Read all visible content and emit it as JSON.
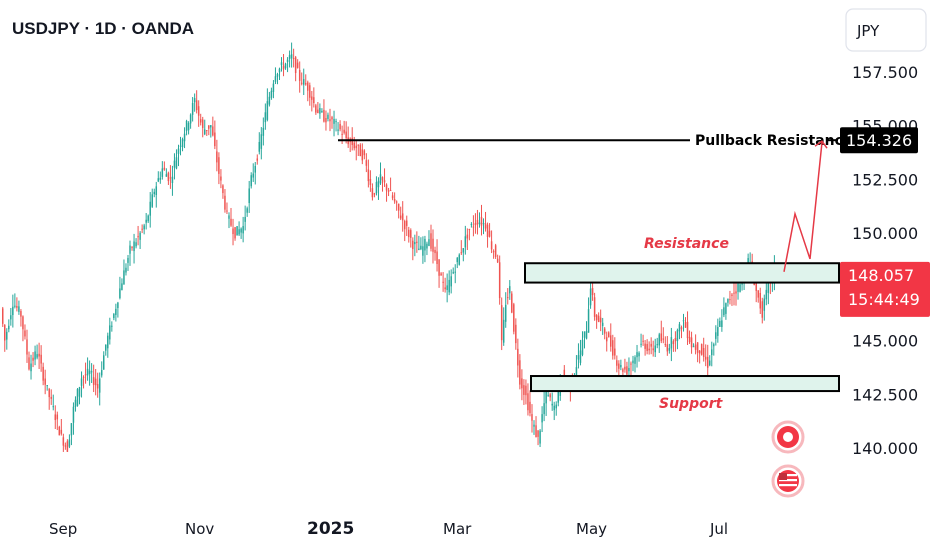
{
  "header": {
    "symbol_title": "USDJPY · 1D · OANDA"
  },
  "currency_button": {
    "label": "JPY"
  },
  "price_tags": {
    "current_price": "148.057",
    "countdown": "15:44:49",
    "pullback_price": "154.326"
  },
  "chart_data": {
    "type": "candlestick",
    "title": "USDJPY · 1D · OANDA",
    "ylim": [
      139.0,
      159.5
    ],
    "y_ticks": [
      {
        "value": 157.5,
        "label": "157.500"
      },
      {
        "value": 155.0,
        "label": "155.000"
      },
      {
        "value": 152.5,
        "label": "152.500"
      },
      {
        "value": 150.0,
        "label": "150.000"
      },
      {
        "value": 145.0,
        "label": "145.000"
      },
      {
        "value": 142.5,
        "label": "142.500"
      },
      {
        "value": 140.0,
        "label": "140.000"
      }
    ],
    "x_ticks": [
      {
        "label": "Sep",
        "bold": false
      },
      {
        "label": "Nov",
        "bold": false
      },
      {
        "label": "2025",
        "bold": true
      },
      {
        "label": "Mar",
        "bold": false
      },
      {
        "label": "May",
        "bold": false
      },
      {
        "label": "Jul",
        "bold": false
      }
    ],
    "price_path": [
      [
        0,
        146.5
      ],
      [
        2,
        145.0
      ],
      [
        6,
        146.8
      ],
      [
        10,
        146.2
      ],
      [
        14,
        143.8
      ],
      [
        18,
        144.5
      ],
      [
        22,
        143.0
      ],
      [
        26,
        141.8
      ],
      [
        30,
        140.5
      ],
      [
        33,
        140.0
      ],
      [
        36,
        141.8
      ],
      [
        40,
        143.3
      ],
      [
        44,
        143.5
      ],
      [
        48,
        142.8
      ],
      [
        52,
        144.8
      ],
      [
        56,
        146.2
      ],
      [
        60,
        147.8
      ],
      [
        64,
        149.2
      ],
      [
        68,
        149.8
      ],
      [
        72,
        150.5
      ],
      [
        76,
        152.0
      ],
      [
        80,
        153.0
      ],
      [
        84,
        152.5
      ],
      [
        88,
        154.0
      ],
      [
        92,
        155.0
      ],
      [
        96,
        156.2
      ],
      [
        100,
        154.8
      ],
      [
        104,
        155.0
      ],
      [
        108,
        152.8
      ],
      [
        112,
        150.8
      ],
      [
        116,
        150.0
      ],
      [
        120,
        150.3
      ],
      [
        124,
        152.5
      ],
      [
        128,
        154.0
      ],
      [
        132,
        156.0
      ],
      [
        136,
        157.5
      ],
      [
        140,
        157.8
      ],
      [
        144,
        158.2
      ],
      [
        148,
        157.2
      ],
      [
        152,
        156.8
      ],
      [
        156,
        155.8
      ],
      [
        160,
        155.4
      ],
      [
        164,
        155.2
      ],
      [
        168,
        154.8
      ],
      [
        172,
        154.3
      ],
      [
        176,
        154.0
      ],
      [
        180,
        153.5
      ],
      [
        184,
        151.8
      ],
      [
        188,
        152.5
      ],
      [
        192,
        152.0
      ],
      [
        196,
        151.2
      ],
      [
        200,
        150.4
      ],
      [
        204,
        149.5
      ],
      [
        208,
        149.2
      ],
      [
        212,
        149.8
      ],
      [
        216,
        148.6
      ],
      [
        220,
        147.2
      ],
      [
        224,
        148.2
      ],
      [
        228,
        149.2
      ],
      [
        232,
        150.2
      ],
      [
        236,
        150.6
      ],
      [
        240,
        150.4
      ],
      [
        243,
        149.4
      ],
      [
        246,
        148.8
      ],
      [
        248,
        144.8
      ],
      [
        250,
        146.8
      ],
      [
        252,
        147.4
      ],
      [
        254,
        145.6
      ],
      [
        257,
        143.2
      ],
      [
        260,
        142.4
      ],
      [
        263,
        141.2
      ],
      [
        266,
        140.4
      ],
      [
        270,
        142.6
      ],
      [
        274,
        141.8
      ],
      [
        278,
        143.4
      ],
      [
        282,
        142.9
      ],
      [
        286,
        144.2
      ],
      [
        290,
        145.6
      ],
      [
        292,
        147.6
      ],
      [
        294,
        146.2
      ],
      [
        298,
        145.6
      ],
      [
        302,
        144.8
      ],
      [
        306,
        143.8
      ],
      [
        310,
        143.6
      ],
      [
        314,
        144.3
      ],
      [
        318,
        144.9
      ],
      [
        322,
        144.5
      ],
      [
        326,
        145.1
      ],
      [
        330,
        144.7
      ],
      [
        334,
        145.2
      ],
      [
        338,
        145.9
      ],
      [
        342,
        144.8
      ],
      [
        346,
        144.6
      ],
      [
        350,
        143.9
      ],
      [
        354,
        145.2
      ],
      [
        358,
        146.4
      ],
      [
        362,
        147.2
      ],
      [
        366,
        147.6
      ],
      [
        370,
        148.7
      ],
      [
        372,
        148.3
      ],
      [
        374,
        147.3
      ],
      [
        377,
        146.3
      ],
      [
        380,
        147.6
      ],
      [
        383,
        148.2
      ]
    ],
    "annotations": [
      {
        "text": "Resistance",
        "zone": [
          147.7,
          148.6
        ]
      },
      {
        "text": "Support",
        "zone": [
          142.65,
          143.35
        ]
      },
      {
        "text": "Pullback Resistance",
        "level": 154.326
      }
    ],
    "projection_path": [
      [
        149.3,
        148.2
      ],
      [
        150.9
      ],
      [
        148.8
      ],
      [
        154.326
      ]
    ]
  }
}
